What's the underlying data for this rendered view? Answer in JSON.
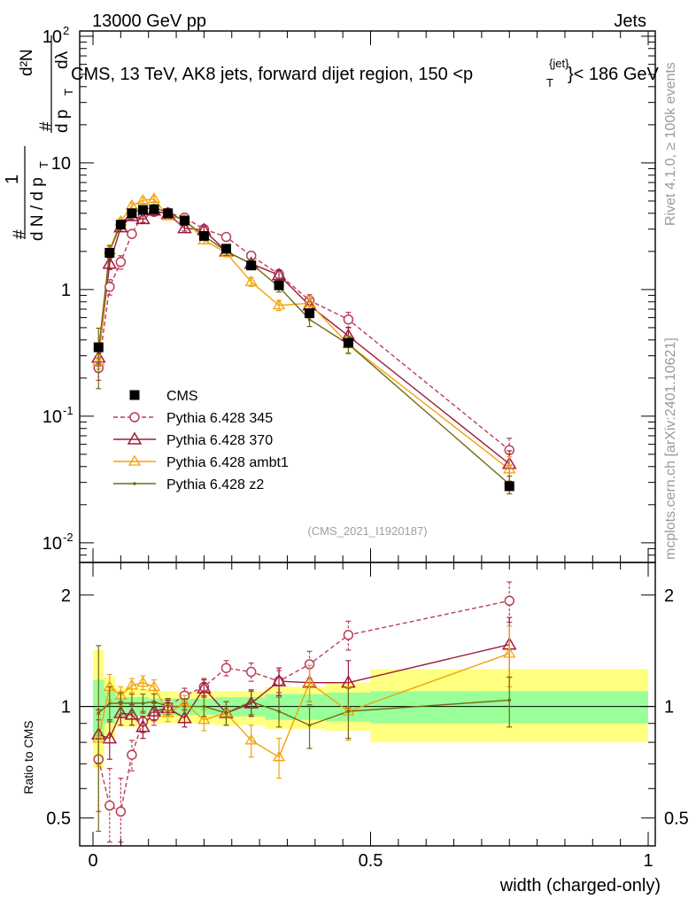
{
  "header": {
    "left": "13000 GeV pp",
    "right": "Jets"
  },
  "plot_title": "CMS, 13 TeV, AK8 jets, forward dijet region, 150 <p",
  "plot_title_sup": "{jet}",
  "plot_title_sub": "T",
  "plot_title_end": "}< 186 GeV",
  "analysis_id": "(CMS_2021_I1920187)",
  "side_top": "Rivet 4.1.0, ≥ 100k events",
  "side_bottom": "mcplots.cern.ch [arXiv:2401.10621]",
  "ylabel_main": "1/N dN/dp_T d^2N/dp_T dλ",
  "ylabel_parts": {
    "hash": "#",
    "one": "1",
    "dN": "d N / d p",
    "T": "T",
    "d2N": "d²N",
    "dp": "d p",
    "dl": "dλ"
  },
  "ylabel_ratio": "Ratio to CMS",
  "xlabel": "width (charged-only)",
  "chart_data": {
    "type": "line",
    "x": [
      0.01,
      0.03,
      0.05,
      0.07,
      0.09,
      0.11,
      0.135,
      0.165,
      0.2,
      0.24,
      0.285,
      0.335,
      0.39,
      0.46,
      0.75
    ],
    "xlim": [
      0,
      1
    ],
    "main": {
      "yscale": "log",
      "ylim": [
        0.007,
        110
      ],
      "yticks": [
        {
          "v": 0.01,
          "label": "10",
          "exp": "-2"
        },
        {
          "v": 0.1,
          "label": "10",
          "exp": "-1"
        },
        {
          "v": 1,
          "label": "1",
          "exp": ""
        },
        {
          "v": 10,
          "label": "10",
          "exp": ""
        },
        {
          "v": 100,
          "label": "10",
          "exp": "2"
        }
      ]
    },
    "ratio": {
      "yscale": "log",
      "ylim": [
        0.42,
        2.45
      ],
      "yticks": [
        {
          "v": 0.5,
          "label": "0.5"
        },
        {
          "v": 1,
          "label": "1"
        },
        {
          "v": 2,
          "label": "2"
        }
      ]
    },
    "xticks": [
      {
        "v": 0,
        "label": "0"
      },
      {
        "v": 0.5,
        "label": "0.5"
      },
      {
        "v": 1,
        "label": "1"
      }
    ],
    "cms": {
      "name": "CMS",
      "values": [
        0.35,
        1.95,
        3.25,
        4.0,
        4.25,
        4.3,
        4.0,
        3.5,
        2.65,
        2.1,
        1.55,
        1.08,
        0.65,
        0.38,
        0.028
      ],
      "bands": [
        {
          "x0": 0.0,
          "x1": 0.02,
          "g": [
            0.82,
            1.18
          ],
          "y": [
            0.68,
            1.42
          ]
        },
        {
          "x0": 0.02,
          "x1": 0.04,
          "g": [
            0.9,
            1.1
          ],
          "y": [
            0.82,
            1.2
          ]
        },
        {
          "x0": 0.04,
          "x1": 0.1,
          "g": [
            0.94,
            1.06
          ],
          "y": [
            0.88,
            1.12
          ]
        },
        {
          "x0": 0.1,
          "x1": 0.22,
          "g": [
            0.95,
            1.05
          ],
          "y": [
            0.9,
            1.1
          ]
        },
        {
          "x0": 0.22,
          "x1": 0.31,
          "g": [
            0.94,
            1.06
          ],
          "y": [
            0.89,
            1.1
          ]
        },
        {
          "x0": 0.31,
          "x1": 0.42,
          "g": [
            0.92,
            1.08
          ],
          "y": [
            0.87,
            1.13
          ]
        },
        {
          "x0": 0.42,
          "x1": 0.5,
          "g": [
            0.91,
            1.09
          ],
          "y": [
            0.86,
            1.16
          ]
        },
        {
          "x0": 0.5,
          "x1": 1.0,
          "g": [
            0.9,
            1.1
          ],
          "y": [
            0.8,
            1.26
          ]
        }
      ]
    },
    "series": [
      {
        "name": "Pythia 6.428 345",
        "color": "#b73e57",
        "marker": "circle",
        "dashed": true,
        "values": [
          0.24,
          1.05,
          1.65,
          2.75,
          3.9,
          4.1,
          4.05,
          3.7,
          3.0,
          2.6,
          1.85,
          1.32,
          0.82,
          0.58,
          0.054
        ],
        "ratio": [
          0.72,
          0.54,
          0.52,
          0.74,
          0.91,
          0.94,
          1.0,
          1.07,
          1.13,
          1.27,
          1.24,
          1.17,
          1.3,
          1.56,
          1.93
        ],
        "rerr": [
          0.2,
          0.14,
          0.12,
          0.07,
          0.06,
          0.05,
          0.05,
          0.05,
          0.06,
          0.06,
          0.07,
          0.08,
          0.11,
          0.14,
          0.24
        ]
      },
      {
        "name": "Pythia 6.428 370",
        "color": "#9e1a3a",
        "marker": "triangle",
        "dashed": false,
        "values": [
          0.29,
          1.6,
          3.1,
          3.8,
          3.6,
          4.2,
          3.95,
          3.05,
          2.95,
          2.0,
          1.6,
          1.3,
          0.75,
          0.43,
          0.042
        ],
        "ratio": [
          0.84,
          0.82,
          0.96,
          0.95,
          0.88,
          0.97,
          0.99,
          0.93,
          1.12,
          0.96,
          1.02,
          1.17,
          1.16,
          1.16,
          1.47
        ],
        "rerr": [
          0.14,
          0.1,
          0.07,
          0.06,
          0.06,
          0.05,
          0.05,
          0.05,
          0.06,
          0.07,
          0.08,
          0.1,
          0.13,
          0.17,
          0.27
        ]
      },
      {
        "name": "Pythia 6.428 ambt1",
        "color": "#f2a30a",
        "marker": "triangle-open",
        "dashed": false,
        "values": [
          0.27,
          2.05,
          3.45,
          4.6,
          5.05,
          5.2,
          3.8,
          3.6,
          2.45,
          1.95,
          1.15,
          0.75,
          0.78,
          0.37,
          0.038
        ],
        "ratio": [
          0.82,
          1.13,
          1.07,
          1.14,
          1.16,
          1.13,
          0.96,
          1.02,
          0.92,
          0.96,
          0.81,
          0.73,
          1.16,
          0.97,
          1.39
        ],
        "rerr": [
          0.13,
          0.09,
          0.06,
          0.05,
          0.05,
          0.05,
          0.05,
          0.05,
          0.06,
          0.07,
          0.08,
          0.09,
          0.13,
          0.16,
          0.26
        ]
      },
      {
        "name": "Pythia 6.428 z2",
        "color": "#6f6a10",
        "marker": "dot",
        "dashed": false,
        "values": [
          0.33,
          2.0,
          3.3,
          4.05,
          4.3,
          4.45,
          4.05,
          3.5,
          2.65,
          2.0,
          1.6,
          1.05,
          0.58,
          0.37,
          0.029
        ],
        "ratio": [
          0.96,
          1.02,
          1.02,
          1.02,
          1.02,
          1.03,
          1.0,
          1.0,
          1.0,
          0.96,
          1.03,
          0.97,
          0.89,
          0.97,
          1.04
        ],
        "rerr": [
          0.5,
          0.11,
          0.07,
          0.06,
          0.06,
          0.05,
          0.05,
          0.05,
          0.06,
          0.07,
          0.08,
          0.09,
          0.12,
          0.15,
          0.16
        ]
      }
    ]
  }
}
